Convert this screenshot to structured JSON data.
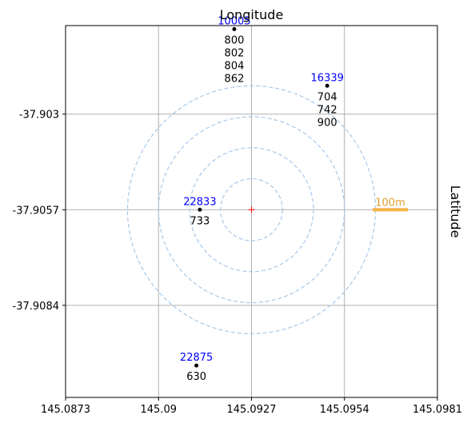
{
  "chart_data": {
    "type": "scatter",
    "title": "Longitude",
    "ylabel": "Latitude",
    "xlim": [
      145.0873,
      145.0981
    ],
    "ylim": [
      -37.911,
      -37.9005
    ],
    "x_ticks": [
      "145.0873",
      "145.09",
      "145.0927",
      "145.0954",
      "145.0981"
    ],
    "y_ticks": [
      "-37.903",
      "-37.9057",
      "-37.9084"
    ],
    "x_tick_values": [
      145.0873,
      145.09,
      145.0927,
      145.0954,
      145.0981
    ],
    "y_tick_values": [
      -37.903,
      -37.9057,
      -37.9084
    ],
    "grid": true,
    "center": {
      "x": 145.0927,
      "y": -37.9057
    },
    "rings_count": 4,
    "scale_bar_label": "100m",
    "colors": {
      "stop_id": "#0000ff",
      "route_text": "#000000",
      "ring": "#a9c8e8",
      "scale_bar": "#f5b342",
      "center_marker": "#ff0000",
      "grid": "#b0b0b0"
    },
    "stops": [
      {
        "id": "10005",
        "x": 145.0922,
        "y": -37.9006,
        "routes": [
          "800",
          "802",
          "804",
          "862"
        ]
      },
      {
        "id": "16339",
        "x": 145.0949,
        "y": -37.9022,
        "routes": [
          "704",
          "742",
          "900"
        ]
      },
      {
        "id": "22833",
        "x": 145.0912,
        "y": -37.9057,
        "routes": [
          "733"
        ]
      },
      {
        "id": "22875",
        "x": 145.0911,
        "y": -37.9101,
        "routes": [
          "630"
        ]
      }
    ]
  }
}
